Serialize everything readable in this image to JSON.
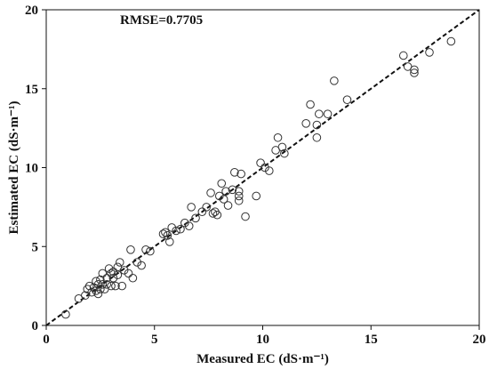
{
  "chart_data": {
    "type": "scatter",
    "title": "",
    "xlabel": "Measured EC (dS·m⁻¹)",
    "ylabel": "Estimated EC (dS·m⁻¹)",
    "annotation": "RMSE=0.7705",
    "xlim": [
      0,
      20
    ],
    "ylim": [
      0,
      20
    ],
    "xticks": [
      0,
      5,
      10,
      15,
      20
    ],
    "yticks": [
      0,
      5,
      10,
      15,
      20
    ],
    "grid": false,
    "legend": "none",
    "reference_line": {
      "style": "dashed",
      "from": [
        0,
        0
      ],
      "to": [
        20,
        20
      ]
    },
    "series": [
      {
        "marker": "open-circle",
        "x": [
          0.9,
          1.5,
          1.8,
          1.9,
          2.0,
          2.1,
          2.2,
          2.3,
          2.3,
          2.4,
          2.4,
          2.5,
          2.5,
          2.6,
          2.6,
          2.7,
          2.8,
          2.8,
          2.9,
          3.0,
          3.0,
          3.1,
          3.1,
          3.2,
          3.3,
          3.3,
          3.4,
          3.5,
          3.6,
          3.8,
          3.9,
          4.0,
          4.2,
          4.4,
          4.6,
          4.8,
          5.4,
          5.5,
          5.6,
          5.7,
          5.8,
          6.0,
          6.2,
          6.4,
          6.6,
          6.7,
          6.9,
          7.2,
          7.4,
          7.6,
          7.7,
          7.8,
          7.9,
          8.0,
          8.1,
          8.2,
          8.3,
          8.4,
          8.6,
          8.7,
          8.9,
          8.9,
          8.9,
          9.0,
          9.2,
          9.7,
          9.9,
          10.1,
          10.3,
          10.6,
          10.7,
          10.9,
          11.0,
          12.0,
          12.2,
          12.5,
          12.5,
          12.6,
          13.0,
          13.3,
          13.9,
          16.5,
          16.7,
          17.0,
          17.0,
          17.7,
          18.7
        ],
        "y": [
          0.7,
          1.7,
          1.9,
          2.3,
          2.5,
          2.1,
          2.4,
          2.8,
          2.2,
          2.0,
          2.6,
          2.9,
          2.3,
          3.3,
          2.6,
          2.3,
          3.0,
          2.6,
          3.6,
          2.5,
          3.3,
          3.4,
          3.0,
          2.5,
          3.7,
          3.2,
          4.0,
          2.5,
          3.5,
          3.3,
          4.8,
          3.0,
          4.0,
          3.8,
          4.8,
          4.7,
          5.8,
          5.9,
          5.7,
          5.3,
          6.2,
          6.0,
          6.1,
          6.5,
          6.3,
          7.5,
          6.8,
          7.2,
          7.5,
          8.4,
          7.1,
          7.2,
          7.0,
          8.2,
          9.0,
          8.0,
          8.5,
          7.6,
          8.6,
          9.7,
          8.2,
          7.9,
          8.5,
          9.6,
          6.9,
          8.2,
          10.3,
          10.0,
          9.8,
          11.1,
          11.9,
          11.3,
          10.9,
          12.8,
          14.0,
          11.9,
          12.7,
          13.4,
          13.4,
          15.5,
          14.3,
          17.1,
          16.4,
          16.2,
          16.0,
          17.3,
          18.0
        ]
      }
    ]
  }
}
